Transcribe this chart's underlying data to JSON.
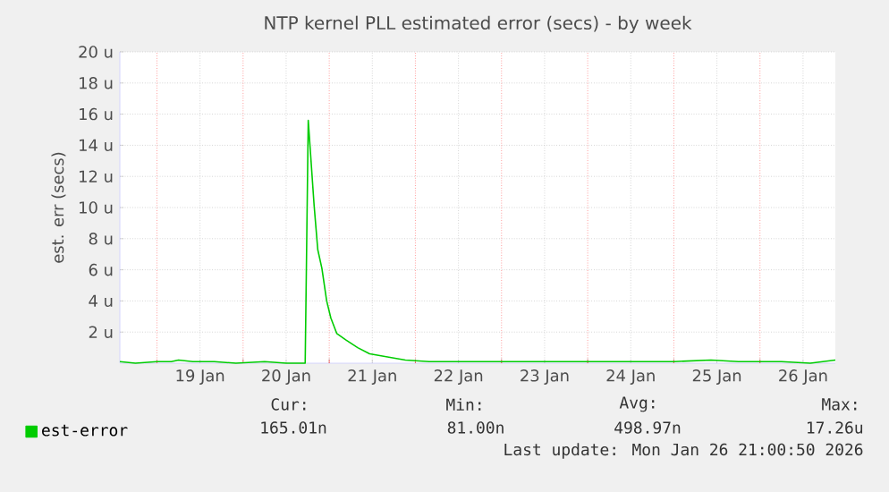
{
  "chart_data": {
    "type": "line",
    "title": "NTP kernel PLL estimated error (secs) - by week",
    "ylabel": "est. err (secs)",
    "xlim": [
      "2026-01-18T13:40",
      "2026-01-26T21:00"
    ],
    "xticks": [
      {
        "value": "2026-01-19T12:00",
        "label": "19 Jan"
      },
      {
        "value": "2026-01-20T12:00",
        "label": "20 Jan"
      },
      {
        "value": "2026-01-21T12:00",
        "label": "21 Jan"
      },
      {
        "value": "2026-01-22T12:00",
        "label": "22 Jan"
      },
      {
        "value": "2026-01-23T12:00",
        "label": "23 Jan"
      },
      {
        "value": "2026-01-24T12:00",
        "label": "24 Jan"
      },
      {
        "value": "2026-01-25T12:00",
        "label": "25 Jan"
      },
      {
        "value": "2026-01-26T12:00",
        "label": "26 Jan"
      },
      {
        "value": "2026-01-19T00:00",
        "label": null
      },
      {
        "value": "2026-01-20T00:00",
        "label": null
      },
      {
        "value": "2026-01-21T00:00",
        "label": null
      },
      {
        "value": "2026-01-22T00:00",
        "label": null
      },
      {
        "value": "2026-01-23T00:00",
        "label": null
      },
      {
        "value": "2026-01-24T00:00",
        "label": null
      },
      {
        "value": "2026-01-25T00:00",
        "label": null
      },
      {
        "value": "2026-01-26T00:00",
        "label": null
      }
    ],
    "ylim": [
      0,
      20
    ],
    "yticks": [
      {
        "value": 2,
        "label": "2 u"
      },
      {
        "value": 4,
        "label": "4 u"
      },
      {
        "value": 6,
        "label": "6 u"
      },
      {
        "value": 8,
        "label": "8 u"
      },
      {
        "value": 10,
        "label": "10 u"
      },
      {
        "value": 12,
        "label": "12 u"
      },
      {
        "value": 14,
        "label": "14 u"
      },
      {
        "value": 16,
        "label": "16 u"
      },
      {
        "value": 18,
        "label": "18 u"
      },
      {
        "value": 20,
        "label": "20 u"
      }
    ],
    "grid": true,
    "legend": "bottom",
    "marker": "none",
    "line_style": "solid",
    "series": [
      {
        "name": "est-error",
        "color": "#00cc00",
        "x": [
          "2026-01-18T13:40",
          "2026-01-18T18:00",
          "2026-01-19T00:00",
          "2026-01-19T04:00",
          "2026-01-19T06:00",
          "2026-01-19T10:00",
          "2026-01-19T16:00",
          "2026-01-19T22:00",
          "2026-01-20T06:00",
          "2026-01-20T12:00",
          "2026-01-20T17:18",
          "2026-01-20T18:09",
          "2026-01-20T19:48",
          "2026-01-20T20:48",
          "2026-01-20T21:57",
          "2026-01-20T23:17",
          "2026-01-21T00:27",
          "2026-01-21T02:07",
          "2026-01-21T04:35",
          "2026-01-21T07:55",
          "2026-01-21T11:14",
          "2026-01-21T16:13",
          "2026-01-21T21:12",
          "2026-01-22T03:50",
          "2026-01-22T12:00",
          "2026-01-23T00:00",
          "2026-01-23T12:00",
          "2026-01-24T00:00",
          "2026-01-24T12:00",
          "2026-01-25T00:00",
          "2026-01-25T10:20",
          "2026-01-25T18:00",
          "2026-01-26T06:00",
          "2026-01-26T14:00",
          "2026-01-26T21:00"
        ],
        "values": [
          0.1,
          0.0,
          0.1,
          0.1,
          0.2,
          0.1,
          0.1,
          0.0,
          0.1,
          0.0,
          0.0,
          15.6,
          10.1,
          7.3,
          6.1,
          4.0,
          2.9,
          1.9,
          1.5,
          1.0,
          0.6,
          0.4,
          0.2,
          0.1,
          0.1,
          0.1,
          0.1,
          0.1,
          0.1,
          0.1,
          0.2,
          0.1,
          0.1,
          0.0,
          0.2
        ]
      }
    ],
    "annotations": [
      "Cur:",
      "165.01n",
      "Min:",
      "81.00n",
      "Avg:",
      "498.97n",
      "Max:",
      "17.26u",
      "Last update: Mon Jan 26 21:00:50 2026"
    ]
  }
}
